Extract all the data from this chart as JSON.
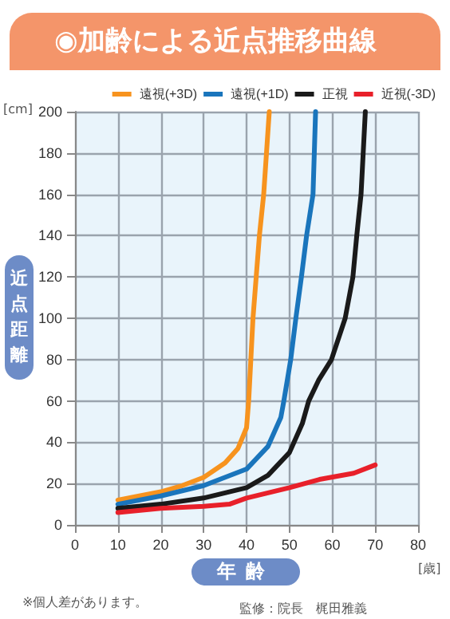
{
  "chart_data": {
    "type": "line",
    "title": "◉加齢による近点推移曲線",
    "xlabel": "年齢",
    "ylabel": "近点距離",
    "annotations": [
      "[cm]",
      "[歳]",
      "※個人差があります。",
      "監修：院長　梶田雅義"
    ],
    "xlim": [
      0,
      80
    ],
    "xticks": [
      0,
      10,
      20,
      30,
      40,
      50,
      60,
      70,
      80
    ],
    "ylim": [
      0,
      200
    ],
    "yticks": [
      0,
      20,
      40,
      60,
      80,
      100,
      120,
      140,
      160,
      180,
      200
    ],
    "grid": true,
    "legend": "top right",
    "marker": "none",
    "line_style": "solid",
    "series": [
      {
        "name": "遠視(+3D)",
        "color": "#f7931e",
        "x": [
          10,
          15,
          20,
          25,
          30,
          35,
          38,
          40,
          40.5,
          41.5,
          43,
          44,
          45.3
        ],
        "values": [
          12,
          14,
          16,
          19,
          23,
          30,
          37,
          47,
          60,
          100,
          140,
          160,
          200
        ]
      },
      {
        "name": "遠視(+1D)",
        "color": "#1a75bc",
        "x": [
          10,
          20,
          30,
          40,
          45,
          48,
          48.7,
          50.3,
          51.5,
          52.8,
          54,
          55.5,
          56.1
        ],
        "values": [
          10,
          14,
          19,
          27,
          38,
          52,
          60,
          80,
          100,
          120,
          140,
          160,
          200
        ]
      },
      {
        "name": "正視",
        "color": "#1a1a1a",
        "x": [
          10,
          20,
          30,
          40,
          45,
          50,
          53,
          54.5,
          56.8,
          59.8,
          63,
          64.8,
          65.7,
          66.7,
          67.7
        ],
        "values": [
          8,
          10,
          13,
          18,
          24,
          35,
          49,
          60,
          70,
          80,
          100,
          120,
          140,
          160,
          200
        ]
      },
      {
        "name": "近視(-3D)",
        "color": "#e8202a",
        "x": [
          10,
          20,
          30,
          36,
          40,
          50,
          57,
          65,
          70
        ],
        "values": [
          6,
          8,
          9,
          10,
          13,
          18,
          22,
          25,
          29
        ]
      }
    ]
  }
}
